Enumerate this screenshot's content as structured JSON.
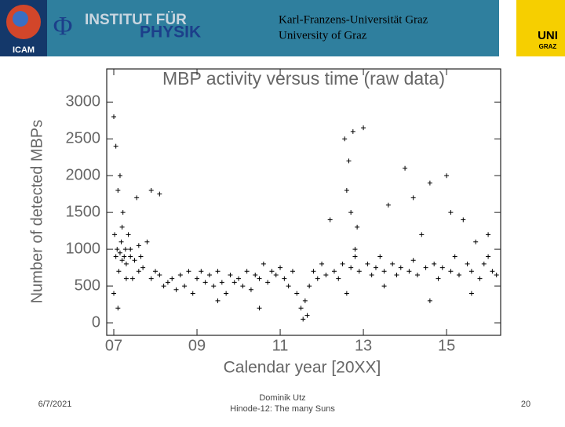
{
  "header": {
    "institute_top": "INSTITUT FÜR",
    "institute_bottom": "PHYSIK",
    "phi": "Φ",
    "icam": "ICAM",
    "university_de": "Karl-Franzens-Universität Graz",
    "university_en": "University of Graz",
    "uni": "UNI",
    "graz": "GRAZ"
  },
  "footer": {
    "date": "6/7/2021",
    "author": "Dominik Utz",
    "event": "Hinode-12: The many Suns",
    "page": "20"
  },
  "chart_data": {
    "type": "scatter",
    "title": "MBP activity versus time (raw data)",
    "x_label": "Calendar year [20XX]",
    "y_label": "Number of detected MBPs",
    "xlim": [
      6.83,
      16.3
    ],
    "ylim": [
      -170,
      3450
    ],
    "xticks": [
      {
        "value": 7,
        "label": "07"
      },
      {
        "value": 9,
        "label": "09"
      },
      {
        "value": 11,
        "label": "11"
      },
      {
        "value": 13,
        "label": "13"
      },
      {
        "value": 15,
        "label": "15"
      }
    ],
    "yticks": [
      0,
      500,
      1000,
      1500,
      2000,
      2500,
      3000
    ],
    "series": [
      {
        "color": "#000000",
        "x": [
          7.0,
          7.02,
          7.05,
          7.08,
          7.1,
          7.12,
          7.15,
          7.18,
          7.2,
          7.22,
          7.25,
          7.28,
          7.3,
          7.35,
          7.4,
          7.45,
          7.5,
          7.55,
          7.6,
          7.65,
          7.7,
          7.8,
          7.9,
          8.0,
          8.1,
          8.2,
          8.3,
          8.4,
          8.5,
          8.6,
          8.7,
          8.8,
          8.9,
          9.0,
          9.1,
          9.2,
          9.3,
          9.4,
          9.5,
          9.6,
          9.7,
          9.8,
          9.9,
          10.0,
          10.1,
          10.2,
          10.3,
          10.4,
          10.5,
          10.6,
          10.7,
          10.8,
          10.9,
          11.0,
          11.1,
          11.2,
          11.3,
          11.4,
          11.5,
          11.55,
          11.6,
          11.65,
          11.7,
          11.8,
          11.9,
          12.0,
          12.1,
          12.2,
          12.3,
          12.4,
          12.5,
          12.55,
          12.6,
          12.65,
          12.7,
          12.75,
          12.8,
          12.85,
          12.9,
          13.0,
          13.1,
          13.2,
          13.3,
          13.4,
          13.5,
          13.6,
          13.7,
          13.8,
          13.9,
          14.0,
          14.1,
          14.2,
          14.3,
          14.4,
          14.5,
          14.6,
          14.7,
          14.8,
          14.9,
          15.0,
          15.1,
          15.2,
          15.3,
          15.4,
          15.5,
          15.6,
          15.7,
          15.8,
          15.9,
          16.0,
          16.1,
          16.2,
          7.0,
          7.05,
          7.1,
          7.2,
          7.3,
          7.6,
          7.9,
          8.1,
          9.5,
          10.5,
          12.6,
          12.7,
          12.8,
          13.5,
          14.2,
          14.6,
          15.1,
          15.6,
          16.0,
          7.15,
          7.4
        ],
        "values": [
          2800,
          1200,
          900,
          1000,
          1800,
          700,
          950,
          1100,
          850,
          1500,
          900,
          1000,
          800,
          1200,
          900,
          600,
          850,
          1700,
          700,
          900,
          750,
          1100,
          600,
          700,
          650,
          500,
          550,
          600,
          450,
          650,
          500,
          700,
          400,
          600,
          700,
          550,
          650,
          500,
          700,
          550,
          400,
          650,
          550,
          600,
          500,
          700,
          450,
          650,
          600,
          800,
          550,
          700,
          650,
          750,
          600,
          500,
          700,
          400,
          200,
          50,
          300,
          100,
          500,
          700,
          600,
          800,
          650,
          1400,
          700,
          600,
          800,
          2500,
          1800,
          2200,
          750,
          2600,
          900,
          1300,
          700,
          2650,
          800,
          650,
          750,
          900,
          700,
          1600,
          800,
          650,
          750,
          2100,
          700,
          850,
          650,
          1200,
          750,
          1900,
          800,
          600,
          750,
          2000,
          700,
          900,
          650,
          1400,
          800,
          700,
          1100,
          600,
          800,
          900,
          700,
          650,
          400,
          2400,
          200,
          1300,
          600,
          1050,
          1800,
          1750,
          300,
          200,
          400,
          1500,
          1000,
          500,
          1700,
          300,
          1500,
          400,
          1200,
          2000,
          1000
        ]
      }
    ]
  }
}
